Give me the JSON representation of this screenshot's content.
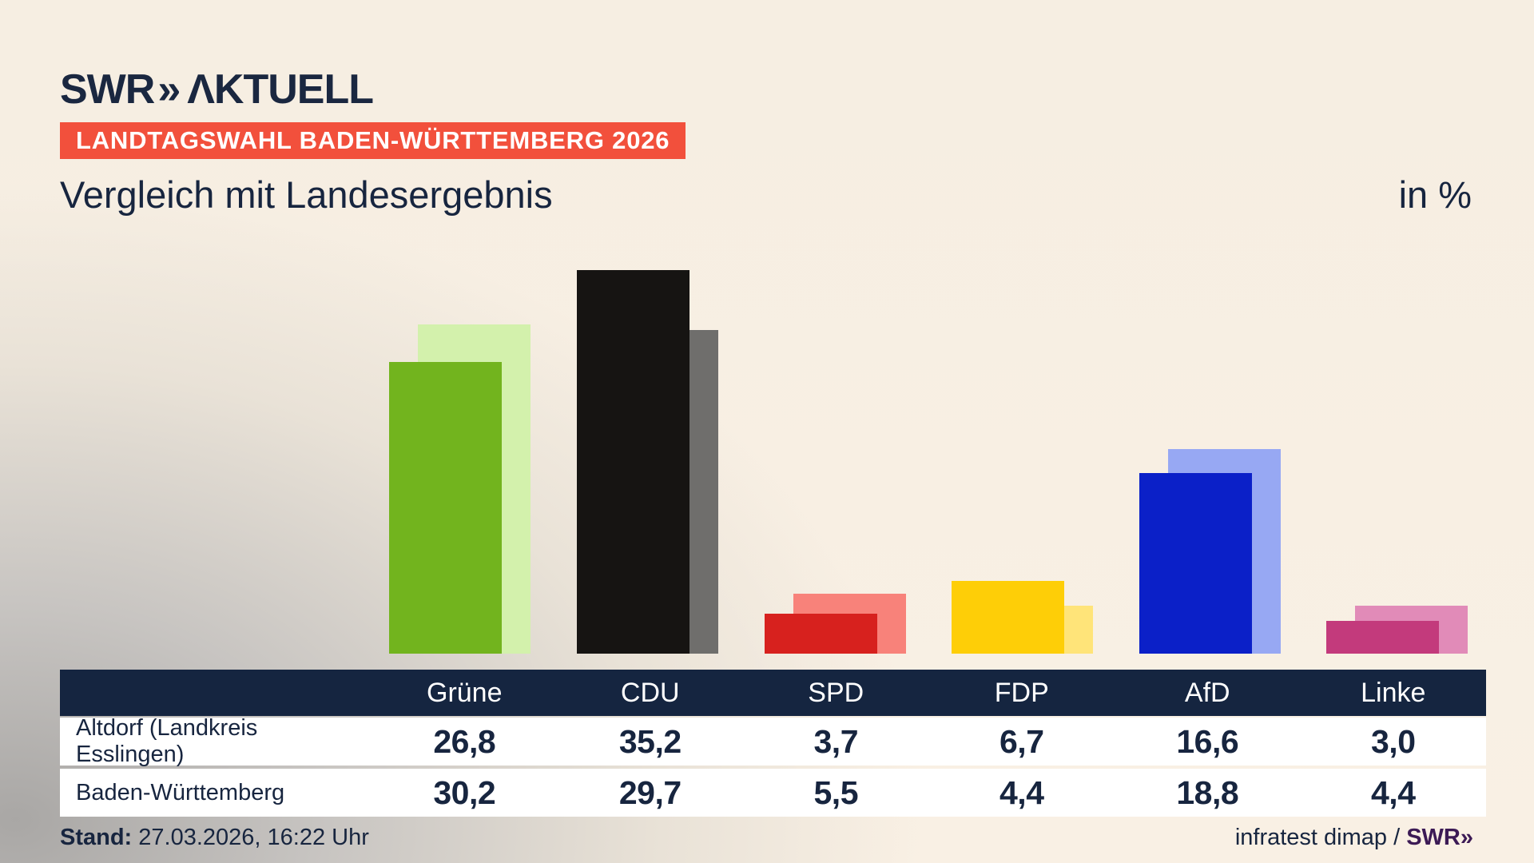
{
  "brand": {
    "swr": "SWR",
    "chevrons": "»",
    "product": "ΛKTUELL"
  },
  "banner": {
    "text": "LANDTAGSWAHL BADEN-WÜRTTEMBERG 2026",
    "bg": "#f2503c"
  },
  "headline": {
    "title": "Vergleich mit Landesergebnis",
    "unit": "in %"
  },
  "chart_data": {
    "type": "bar",
    "categories": [
      "Grüne",
      "CDU",
      "SPD",
      "FDP",
      "AfD",
      "Linke"
    ],
    "series": [
      {
        "name": "Altdorf (Landkreis Esslingen)",
        "role": "municipality-front-bars",
        "values": [
          26.8,
          35.2,
          3.7,
          6.7,
          16.6,
          3.0
        ],
        "bar_colors": [
          "#72b41e",
          "#161412",
          "#d7211e",
          "#fece07",
          "#0b20c8",
          "#c33a7c"
        ]
      },
      {
        "name": "Baden-Württemberg",
        "role": "state-back-bars",
        "values": [
          30.2,
          29.7,
          5.5,
          4.4,
          18.8,
          4.4
        ],
        "bar_colors": [
          "#d3f1ac",
          "#6f6e6c",
          "#f8827a",
          "#ffe479",
          "#97a8f3",
          "#e18bb8"
        ]
      }
    ],
    "unit": "%",
    "ylim": [
      0,
      35.2
    ],
    "grid": false,
    "value_labels_position": "table-below-chart"
  },
  "table": {
    "columns": [
      "",
      "Grüne",
      "CDU",
      "SPD",
      "FDP",
      "AfD",
      "Linke"
    ],
    "rows": [
      {
        "label": "Altdorf (Landkreis Esslingen)",
        "values": [
          "26,8",
          "35,2",
          "3,7",
          "6,7",
          "16,6",
          "3,0"
        ]
      },
      {
        "label": "Baden-Württemberg",
        "values": [
          "30,2",
          "29,7",
          "5,5",
          "4,4",
          "18,8",
          "4,4"
        ]
      }
    ],
    "header_bg": "#152540"
  },
  "footer": {
    "stand_label": "Stand:",
    "stand_value": " 27.03.2026, 16:22 Uhr",
    "source_text": "infratest dimap / ",
    "source_brand_swr": "SWR",
    "source_brand_chevrons": "»"
  },
  "colors": {
    "navy": "#17253f",
    "banner_red": "#f2503c",
    "swr_purple": "#3c1a55",
    "background_cream": "#f8efe3"
  }
}
